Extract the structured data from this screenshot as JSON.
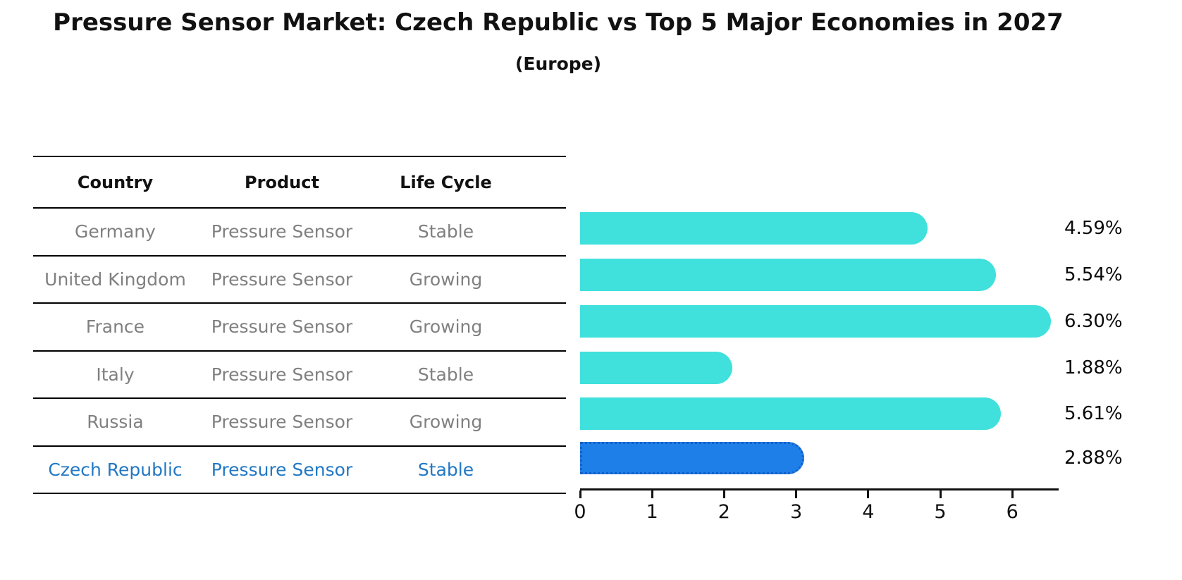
{
  "title": "Pressure Sensor Market: Czech Republic vs Top 5 Major Economies in 2027",
  "subtitle": "(Europe)",
  "table": {
    "headers": [
      "Country",
      "Product",
      "Life Cycle"
    ],
    "rows": [
      {
        "country": "Germany",
        "product": "Pressure Sensor",
        "life_cycle": "Stable",
        "highlighted": false
      },
      {
        "country": "United Kingdom",
        "product": "Pressure Sensor",
        "life_cycle": "Growing",
        "highlighted": false
      },
      {
        "country": "France",
        "product": "Pressure Sensor",
        "life_cycle": "Growing",
        "highlighted": false
      },
      {
        "country": "Italy",
        "product": "Pressure Sensor",
        "life_cycle": "Stable",
        "highlighted": false
      },
      {
        "country": "Russia",
        "product": "Pressure Sensor",
        "life_cycle": "Growing",
        "highlighted": false
      },
      {
        "country": "Czech Republic",
        "product": "Pressure Sensor",
        "life_cycle": "Stable",
        "highlighted": true
      }
    ]
  },
  "chart_data": {
    "type": "bar",
    "orientation": "horizontal",
    "title": "Pressure Sensor Market: Czech Republic vs Top 5 Major Economies in 2027 (Europe)",
    "categories": [
      "Germany",
      "United Kingdom",
      "France",
      "Italy",
      "Russia",
      "Czech Republic"
    ],
    "values": [
      4.59,
      5.54,
      6.3,
      1.88,
      5.61,
      2.88
    ],
    "value_labels": [
      "4.59%",
      "5.54%",
      "6.30%",
      "1.88%",
      "5.61%",
      "2.88%"
    ],
    "xticks": [
      0,
      1,
      2,
      3,
      4,
      5,
      6
    ],
    "xlim": [
      0,
      6.62
    ],
    "grid": false,
    "legend": "none",
    "highlight_index": 5,
    "bar_color": "#40E0DC",
    "highlight_bar_color": "#1E7FE9",
    "highlight_border_color": "#1560C8",
    "highlight_text_color": "#2278C4"
  }
}
